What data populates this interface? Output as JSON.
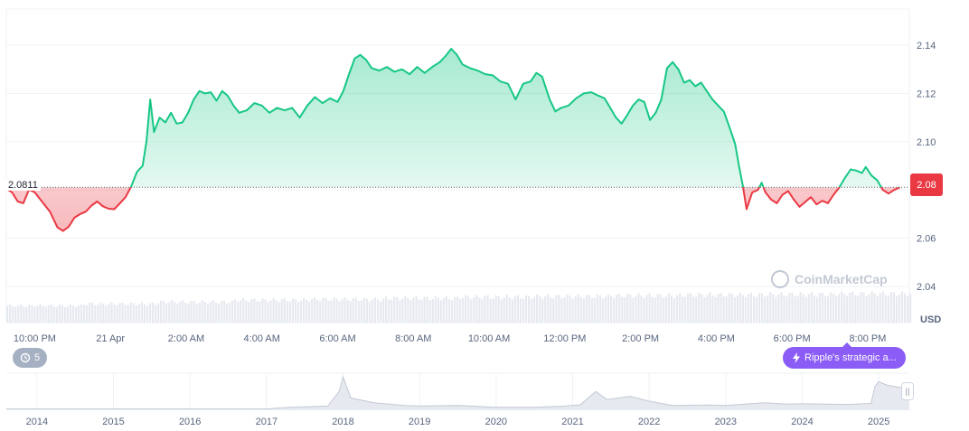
{
  "chart_data": {
    "type": "area",
    "title": "",
    "xlabel": "",
    "ylabel": "",
    "ylim": [
      2.025,
      2.155
    ],
    "y_ticks": [
      "2.14",
      "2.12",
      "2.10",
      "2.08",
      "2.06",
      "2.04"
    ],
    "x_ticks": [
      "10:00 PM",
      "21 Apr",
      "2:00 AM",
      "4:00 AM",
      "6:00 AM",
      "8:00 AM",
      "10:00 AM",
      "12:00 PM",
      "2:00 PM",
      "4:00 PM",
      "6:00 PM",
      "8:00 PM"
    ],
    "x_hours": [
      -2,
      0,
      2,
      4,
      6,
      8,
      10,
      12,
      14,
      16,
      18,
      20
    ],
    "x_range_hours": [
      -2.75,
      21.1
    ],
    "reference_price": "2.0811",
    "reference_value": 2.0811,
    "current_price_label": "2.08",
    "currency": "USD",
    "colors": {
      "up": "#16c784",
      "down": "#ea3943"
    },
    "grid": true,
    "price_points": [
      [
        -2.75,
        2.0805
      ],
      [
        -2.6,
        2.079
      ],
      [
        -2.45,
        2.0752
      ],
      [
        -2.3,
        2.0745
      ],
      [
        -2.15,
        2.0802
      ],
      [
        -2.0,
        2.079
      ],
      [
        -1.8,
        2.075
      ],
      [
        -1.6,
        2.071
      ],
      [
        -1.4,
        2.0645
      ],
      [
        -1.25,
        2.063
      ],
      [
        -1.1,
        2.0648
      ],
      [
        -0.95,
        2.0685
      ],
      [
        -0.8,
        2.07
      ],
      [
        -0.65,
        2.071
      ],
      [
        -0.5,
        2.0735
      ],
      [
        -0.35,
        2.0752
      ],
      [
        -0.2,
        2.0732
      ],
      [
        -0.05,
        2.0722
      ],
      [
        0.1,
        2.072
      ],
      [
        0.25,
        2.0745
      ],
      [
        0.4,
        2.077
      ],
      [
        0.55,
        2.0815
      ],
      [
        0.7,
        2.0875
      ],
      [
        0.85,
        2.09
      ],
      [
        0.95,
        2.1
      ],
      [
        1.05,
        2.1175
      ],
      [
        1.15,
        2.104
      ],
      [
        1.3,
        2.11
      ],
      [
        1.45,
        2.108
      ],
      [
        1.6,
        2.112
      ],
      [
        1.75,
        2.1075
      ],
      [
        1.9,
        2.108
      ],
      [
        2.05,
        2.112
      ],
      [
        2.2,
        2.1175
      ],
      [
        2.35,
        2.121
      ],
      [
        2.5,
        2.12
      ],
      [
        2.65,
        2.1205
      ],
      [
        2.8,
        2.117
      ],
      [
        2.95,
        2.121
      ],
      [
        3.1,
        2.119
      ],
      [
        3.25,
        2.115
      ],
      [
        3.4,
        2.112
      ],
      [
        3.6,
        2.113
      ],
      [
        3.8,
        2.116
      ],
      [
        4.0,
        2.115
      ],
      [
        4.2,
        2.112
      ],
      [
        4.4,
        2.114
      ],
      [
        4.6,
        2.113
      ],
      [
        4.8,
        2.114
      ],
      [
        5.0,
        2.11
      ],
      [
        5.2,
        2.115
      ],
      [
        5.4,
        2.1185
      ],
      [
        5.6,
        2.116
      ],
      [
        5.8,
        2.118
      ],
      [
        6.0,
        2.1165
      ],
      [
        6.15,
        2.121
      ],
      [
        6.3,
        2.128
      ],
      [
        6.45,
        2.1345
      ],
      [
        6.6,
        2.136
      ],
      [
        6.75,
        2.134
      ],
      [
        6.9,
        2.1305
      ],
      [
        7.1,
        2.1295
      ],
      [
        7.3,
        2.131
      ],
      [
        7.5,
        2.129
      ],
      [
        7.7,
        2.13
      ],
      [
        7.9,
        2.128
      ],
      [
        8.1,
        2.131
      ],
      [
        8.3,
        2.1285
      ],
      [
        8.5,
        2.131
      ],
      [
        8.7,
        2.133
      ],
      [
        8.85,
        2.1355
      ],
      [
        9.0,
        2.1385
      ],
      [
        9.15,
        2.136
      ],
      [
        9.3,
        2.132
      ],
      [
        9.5,
        2.1305
      ],
      [
        9.7,
        2.1295
      ],
      [
        9.9,
        2.128
      ],
      [
        10.1,
        2.1275
      ],
      [
        10.3,
        2.125
      ],
      [
        10.5,
        2.124
      ],
      [
        10.7,
        2.1175
      ],
      [
        10.9,
        2.124
      ],
      [
        11.1,
        2.125
      ],
      [
        11.25,
        2.1285
      ],
      [
        11.4,
        2.127
      ],
      [
        11.6,
        2.1175
      ],
      [
        11.75,
        2.1125
      ],
      [
        11.9,
        2.114
      ],
      [
        12.1,
        2.115
      ],
      [
        12.3,
        2.118
      ],
      [
        12.5,
        2.12
      ],
      [
        12.7,
        2.1205
      ],
      [
        12.9,
        2.119
      ],
      [
        13.05,
        2.118
      ],
      [
        13.2,
        2.114
      ],
      [
        13.35,
        2.11
      ],
      [
        13.5,
        2.1075
      ],
      [
        13.65,
        2.111
      ],
      [
        13.8,
        2.115
      ],
      [
        13.95,
        2.1175
      ],
      [
        14.1,
        2.1165
      ],
      [
        14.25,
        2.109
      ],
      [
        14.4,
        2.112
      ],
      [
        14.55,
        2.1175
      ],
      [
        14.7,
        2.1305
      ],
      [
        14.85,
        2.133
      ],
      [
        15.0,
        2.13
      ],
      [
        15.15,
        2.1245
      ],
      [
        15.3,
        2.1255
      ],
      [
        15.45,
        2.123
      ],
      [
        15.6,
        2.1245
      ],
      [
        15.75,
        2.121
      ],
      [
        15.9,
        2.1175
      ],
      [
        16.05,
        2.115
      ],
      [
        16.2,
        2.1125
      ],
      [
        16.35,
        2.106
      ],
      [
        16.5,
        2.099
      ],
      [
        16.6,
        2.09
      ],
      [
        16.7,
        2.082
      ],
      [
        16.8,
        2.072
      ],
      [
        16.95,
        2.079
      ],
      [
        17.1,
        2.08
      ],
      [
        17.2,
        2.083
      ],
      [
        17.3,
        2.079
      ],
      [
        17.45,
        2.076
      ],
      [
        17.6,
        2.0745
      ],
      [
        17.75,
        2.078
      ],
      [
        17.9,
        2.0795
      ],
      [
        18.05,
        2.076
      ],
      [
        18.2,
        2.073
      ],
      [
        18.35,
        2.075
      ],
      [
        18.5,
        2.077
      ],
      [
        18.65,
        2.074
      ],
      [
        18.8,
        2.0755
      ],
      [
        18.95,
        2.0745
      ],
      [
        19.1,
        2.078
      ],
      [
        19.25,
        2.081
      ],
      [
        19.4,
        2.085
      ],
      [
        19.55,
        2.0885
      ],
      [
        19.7,
        2.088
      ],
      [
        19.85,
        2.087
      ],
      [
        19.95,
        2.0895
      ],
      [
        20.1,
        2.086
      ],
      [
        20.25,
        2.084
      ],
      [
        20.4,
        2.08
      ],
      [
        20.55,
        2.0785
      ],
      [
        20.7,
        2.08
      ],
      [
        20.85,
        2.0811
      ]
    ],
    "volume_levels": [
      0.45,
      0.5,
      0.55,
      0.6,
      0.62,
      0.65,
      0.68,
      0.7,
      0.72,
      0.74,
      0.75,
      0.77
    ],
    "navigator": {
      "years": [
        "2014",
        "2015",
        "2016",
        "2017",
        "2018",
        "2019",
        "2020",
        "2021",
        "2022",
        "2023",
        "2024",
        "2025"
      ],
      "year_start": 2013.6,
      "year_end": 2025.4,
      "price_points": [
        [
          2013.6,
          0.01
        ],
        [
          2014.0,
          0.01
        ],
        [
          2015.0,
          0.01
        ],
        [
          2016.0,
          0.01
        ],
        [
          2017.0,
          0.01
        ],
        [
          2017.3,
          0.06
        ],
        [
          2017.8,
          0.1
        ],
        [
          2017.95,
          0.55
        ],
        [
          2018.0,
          1.0
        ],
        [
          2018.1,
          0.35
        ],
        [
          2018.4,
          0.2
        ],
        [
          2018.8,
          0.12
        ],
        [
          2019.0,
          0.1
        ],
        [
          2019.5,
          0.12
        ],
        [
          2020.0,
          0.06
        ],
        [
          2020.5,
          0.06
        ],
        [
          2020.9,
          0.1
        ],
        [
          2021.1,
          0.14
        ],
        [
          2021.3,
          0.55
        ],
        [
          2021.45,
          0.3
        ],
        [
          2021.75,
          0.4
        ],
        [
          2022.0,
          0.25
        ],
        [
          2022.3,
          0.12
        ],
        [
          2022.8,
          0.13
        ],
        [
          2023.0,
          0.12
        ],
        [
          2023.5,
          0.2
        ],
        [
          2023.8,
          0.16
        ],
        [
          2024.0,
          0.17
        ],
        [
          2024.6,
          0.15
        ],
        [
          2024.9,
          0.18
        ],
        [
          2024.95,
          0.7
        ],
        [
          2025.0,
          0.85
        ],
        [
          2025.1,
          0.75
        ],
        [
          2025.25,
          0.68
        ],
        [
          2025.4,
          0.66
        ]
      ]
    }
  },
  "reference_label": "2.0811",
  "price_badge": "2.08",
  "currency_label": "USD",
  "history_button": {
    "icon": "history-icon",
    "count": "5"
  },
  "news_button": {
    "icon": "lightning-icon",
    "label": "Ripple's strategic a..."
  },
  "watermark": {
    "icon": "coinmarketcap-logo-icon",
    "text": "CoinMarketCap"
  },
  "navigator_handle": {
    "icon": "grip-icon",
    "glyph": "||"
  }
}
